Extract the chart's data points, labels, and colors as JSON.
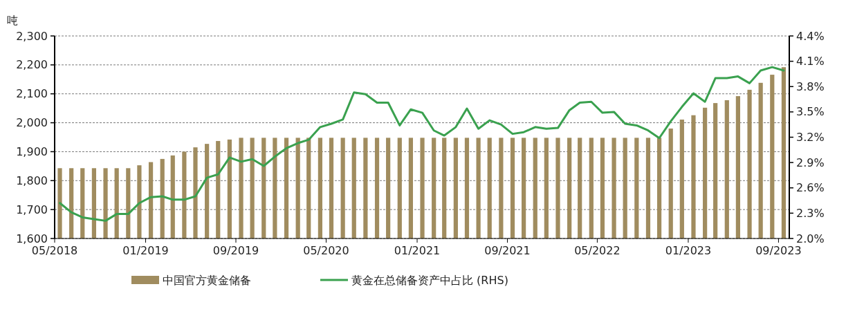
{
  "chart_data": {
    "type": "bar",
    "ylabel": "吨",
    "x": [
      "2018-05-15",
      "2018-06-15",
      "2018-07-15",
      "2018-08-15",
      "2018-09-15",
      "2018-10-15",
      "2018-11-15",
      "2018-12-15",
      "2019-01-15",
      "2019-02-15",
      "2019-03-15",
      "2019-04-15",
      "2019-05-15",
      "2019-06-15",
      "2019-07-15",
      "2019-08-15",
      "2019-09-15",
      "2019-10-15",
      "2019-11-15",
      "2019-12-15",
      "2020-01-15",
      "2020-02-15",
      "2020-03-15",
      "2020-04-15",
      "2020-05-15",
      "2020-06-15",
      "2020-07-15",
      "2020-08-15",
      "2020-09-15",
      "2020-10-15",
      "2020-11-15",
      "2020-12-15",
      "2021-01-15",
      "2021-02-15",
      "2021-03-15",
      "2021-04-15",
      "2021-05-15",
      "2021-06-15",
      "2021-07-15",
      "2021-08-15",
      "2021-09-15",
      "2021-10-15",
      "2021-11-15",
      "2021-12-15",
      "2022-01-15",
      "2022-02-15",
      "2022-03-15",
      "2022-04-15",
      "2022-05-15",
      "2022-06-15",
      "2022-07-15",
      "2022-08-15",
      "2022-09-15",
      "2022-10-15",
      "2022-11-15",
      "2022-12-15",
      "2023-01-15",
      "2023-02-15",
      "2023-03-15",
      "2023-04-15",
      "2023-05-15",
      "2023-06-15",
      "2023-07-15",
      "2023-08-15",
      "2023-09-15"
    ],
    "series": [
      {
        "name": "中国官方黄金储备",
        "color": "#a08c5f",
        "values": [
          1843,
          1843,
          1843,
          1843,
          1843,
          1843,
          1843,
          1853,
          1864,
          1875,
          1887,
          1900,
          1915,
          1927,
          1937,
          1942,
          1948,
          1948,
          1948,
          1948,
          1948,
          1948,
          1948,
          1948,
          1948,
          1948,
          1948,
          1948,
          1948,
          1948,
          1948,
          1948,
          1948,
          1948,
          1948,
          1948,
          1948,
          1948,
          1948,
          1948,
          1948,
          1948,
          1948,
          1948,
          1948,
          1948,
          1948,
          1948,
          1948,
          1948,
          1948,
          1948,
          1948,
          1948,
          1980,
          2011,
          2026,
          2052,
          2068,
          2078,
          2092,
          2114,
          2138,
          2166,
          2192
        ]
      },
      {
        "name": "黄金在总储备资产中占比 (RHS)",
        "type": "line",
        "axis": "y2",
        "color": "#3aa14f",
        "values": [
          2.42,
          2.31,
          2.25,
          2.23,
          2.21,
          2.29,
          2.29,
          2.42,
          2.49,
          2.5,
          2.46,
          2.46,
          2.5,
          2.72,
          2.76,
          2.96,
          2.91,
          2.94,
          2.86,
          2.97,
          3.07,
          3.13,
          3.17,
          3.32,
          3.36,
          3.41,
          3.73,
          3.71,
          3.61,
          3.61,
          3.34,
          3.53,
          3.49,
          3.28,
          3.22,
          3.32,
          3.54,
          3.3,
          3.4,
          3.35,
          3.24,
          3.26,
          3.32,
          3.3,
          3.31,
          3.52,
          3.61,
          3.62,
          3.49,
          3.5,
          3.36,
          3.34,
          3.28,
          3.19,
          3.39,
          3.56,
          3.72,
          3.62,
          3.9,
          3.9,
          3.92,
          3.84,
          3.99,
          4.03,
          3.99
        ]
      }
    ],
    "xlim": [
      "2018-05-01",
      "2023-09-30"
    ],
    "xticks": [
      {
        "value": "2018-05-01",
        "label": "05/2018"
      },
      {
        "value": "2019-01-01",
        "label": "01/2019"
      },
      {
        "value": "2019-09-01",
        "label": "09/2019"
      },
      {
        "value": "2020-05-01",
        "label": "05/2020"
      },
      {
        "value": "2021-01-01",
        "label": "01/2021"
      },
      {
        "value": "2021-09-01",
        "label": "09/2021"
      },
      {
        "value": "2022-05-01",
        "label": "05/2022"
      },
      {
        "value": "2023-01-01",
        "label": "01/2023"
      },
      {
        "value": "2023-09-01",
        "label": "09/2023"
      }
    ],
    "ylim": [
      1600,
      2300
    ],
    "yticks": [
      {
        "value": 1600,
        "label": "1,600"
      },
      {
        "value": 1700,
        "label": "1,700"
      },
      {
        "value": 1800,
        "label": "1,800"
      },
      {
        "value": 1900,
        "label": "1,900"
      },
      {
        "value": 2000,
        "label": "2,000"
      },
      {
        "value": 2100,
        "label": "2,100"
      },
      {
        "value": 2200,
        "label": "2,200"
      },
      {
        "value": 2300,
        "label": "2,300"
      }
    ],
    "y2lim": [
      2.0,
      4.4
    ],
    "y2ticks": [
      {
        "value": 2.0,
        "label": "2.0%"
      },
      {
        "value": 2.3,
        "label": "2.3%"
      },
      {
        "value": 2.6,
        "label": "2.6%"
      },
      {
        "value": 2.9,
        "label": "2.9%"
      },
      {
        "value": 3.2,
        "label": "3.2%"
      },
      {
        "value": 3.5,
        "label": "3.5%"
      },
      {
        "value": 3.8,
        "label": "3.8%"
      },
      {
        "value": 4.1,
        "label": "4.1%"
      },
      {
        "value": 4.4,
        "label": "4.4%"
      }
    ],
    "grid": "y",
    "legend": "bottom"
  }
}
